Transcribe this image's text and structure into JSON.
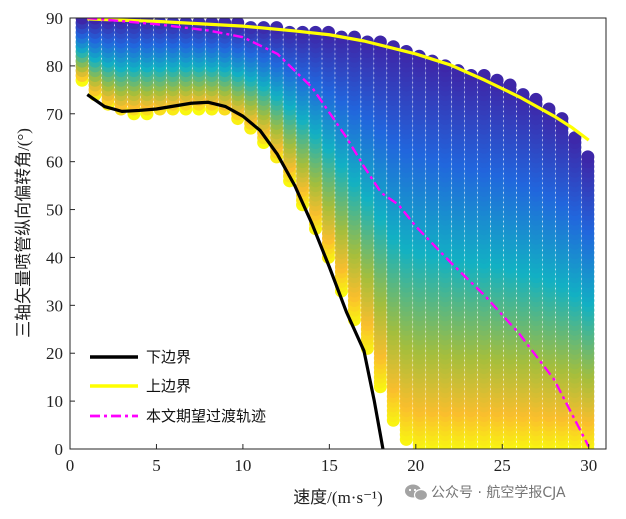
{
  "chart_data": {
    "type": "scatter",
    "xlabel": "速度/(m·s⁻¹)",
    "ylabel": "三轴矢量喷管纵向偏转角/(°)",
    "xlim": [
      0,
      31
    ],
    "ylim": [
      0,
      90
    ],
    "xticks": [
      0,
      5,
      10,
      15,
      20,
      25,
      30
    ],
    "yticks": [
      0,
      10,
      20,
      30,
      40,
      50,
      60,
      70,
      80,
      90
    ],
    "grid": false,
    "legend_position": "bottom-left",
    "colors": {
      "lower_boundary": "#000000",
      "upper_boundary": "#ffff00",
      "desired_transition": "#ff00ff",
      "colormap": "parula"
    },
    "scatter_region": {
      "x_start": 0.7,
      "x_end": 30.0,
      "x_step": 0.75,
      "y_step": 1.0,
      "color_encoding": "color varies from yellow (low deflection) to dark blue (high deflection) relative to the feasible column",
      "max_angle": [
        [
          1,
          90
        ],
        [
          5,
          90
        ],
        [
          10,
          89
        ],
        [
          15,
          87
        ],
        [
          17,
          86
        ],
        [
          20,
          83
        ],
        [
          22,
          80
        ],
        [
          25,
          77
        ],
        [
          27,
          73
        ],
        [
          28.5,
          69
        ],
        [
          29.5,
          64
        ],
        [
          30,
          61
        ]
      ],
      "min_angle": [
        [
          0.7,
          77
        ],
        [
          1,
          75
        ],
        [
          2,
          72
        ],
        [
          3,
          70
        ],
        [
          5,
          70
        ],
        [
          7,
          71
        ],
        [
          8,
          71
        ],
        [
          9,
          70
        ],
        [
          10,
          68
        ],
        [
          11,
          65
        ],
        [
          12,
          60
        ],
        [
          13,
          54
        ],
        [
          14,
          47
        ],
        [
          15,
          39
        ],
        [
          16,
          30
        ],
        [
          17,
          22
        ],
        [
          18,
          12
        ],
        [
          19,
          2
        ],
        [
          20,
          0
        ],
        [
          30,
          0
        ]
      ]
    },
    "series": [
      {
        "name": "下边界",
        "style": "solid",
        "points": [
          [
            1,
            74
          ],
          [
            2,
            71.5
          ],
          [
            3,
            70.5
          ],
          [
            4,
            70.7
          ],
          [
            5,
            71
          ],
          [
            6,
            71.6
          ],
          [
            7,
            72.2
          ],
          [
            8,
            72.4
          ],
          [
            9,
            71.5
          ],
          [
            10,
            69.5
          ],
          [
            11,
            66.5
          ],
          [
            12,
            61.5
          ],
          [
            13,
            55
          ],
          [
            14,
            47
          ],
          [
            15,
            38
          ],
          [
            16,
            28.5
          ],
          [
            17,
            20.5
          ],
          [
            17.6,
            10
          ],
          [
            18.1,
            0
          ]
        ]
      },
      {
        "name": "上边界",
        "style": "solid",
        "points": [
          [
            1,
            89.8
          ],
          [
            5,
            89.3
          ],
          [
            10,
            88.3
          ],
          [
            13,
            87.3
          ],
          [
            15,
            86.5
          ],
          [
            17,
            85.2
          ],
          [
            20,
            82.5
          ],
          [
            22,
            80.2
          ],
          [
            24,
            77
          ],
          [
            26,
            73.5
          ],
          [
            28,
            69.5
          ],
          [
            29,
            67.2
          ],
          [
            30,
            64.5
          ]
        ]
      },
      {
        "name": "本文期望过渡轨迹",
        "style": "dash-dot",
        "points": [
          [
            1,
            90
          ],
          [
            5,
            88.7
          ],
          [
            8,
            87.4
          ],
          [
            10,
            86
          ],
          [
            12,
            82.5
          ],
          [
            14,
            75.5
          ],
          [
            16,
            65
          ],
          [
            17,
            59
          ],
          [
            18,
            53.5
          ],
          [
            19,
            51
          ],
          [
            20,
            46.5
          ],
          [
            22,
            39
          ],
          [
            24,
            32
          ],
          [
            26,
            24
          ],
          [
            28,
            14.5
          ],
          [
            30,
            0.5
          ]
        ]
      }
    ]
  },
  "watermark": {
    "icon": "wechat-icon",
    "text": "公众号 · 航空学报CJA"
  }
}
